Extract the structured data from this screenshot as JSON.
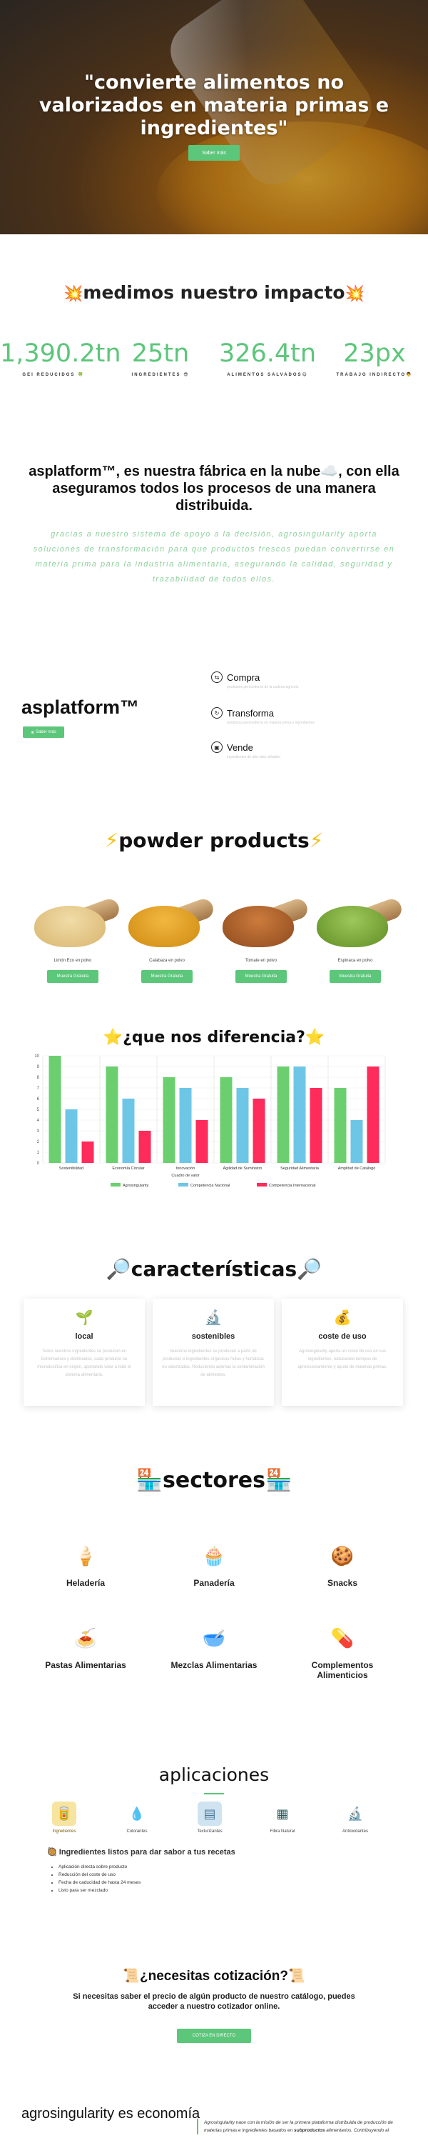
{
  "hero": {
    "title": "\"convierte alimentos no valorizados en materia primas e ingredientes\"",
    "button": "Saber más"
  },
  "impact": {
    "title": "medimos nuestro impacto",
    "stats": [
      {
        "value": "1,390.2tn",
        "label": "GEI REDUCIDOS 🍀"
      },
      {
        "value": "25tn",
        "label": "INGREDIENTES 😎"
      },
      {
        "value": "326.4tn",
        "label": "ALIMENTOS SALVADOS😋"
      },
      {
        "value": "23px",
        "label": "TRABAJO INDIRECTO👨"
      }
    ]
  },
  "intro": {
    "title": "asplatform™, es nuestra fábrica en la nube☁️, con ella aseguramos todos los procesos de una manera distribuida.",
    "text": "gracias a nuestro sistema de apoyo a la decisión, agrosingularity aporta soluciones de transformación para que productos frescos puedan convertirse en materia prima para la industria alimentaria, asegurando la calidad, seguridad y trazabilidad de todos ellos."
  },
  "asplatform": {
    "name": "asplatform™",
    "button": "Saber más",
    "features": [
      {
        "icon": "compra-icon",
        "name": "Compra",
        "desc": "productos perecederos de la cadena agrícola"
      },
      {
        "icon": "transforma-icon",
        "name": "Transforma",
        "desc": "productos perecederos en materia prima e ingredientes"
      },
      {
        "icon": "vende-icon",
        "name": "Vende",
        "desc": "ingredientes de alto valor añadido"
      }
    ]
  },
  "powder": {
    "title": "powder products",
    "products": [
      {
        "name": "Limón Eco en polvo",
        "button": "Muestra Gratuita",
        "color": "#e8c98a"
      },
      {
        "name": "Calabaza en polvo",
        "button": "Muestra Gratuita",
        "color": "#e3a320"
      },
      {
        "name": "Tomate en polvo",
        "button": "Muestra Gratuita",
        "color": "#b5652a"
      },
      {
        "name": "Espinaca en polvo",
        "button": "Muestra Gratuita",
        "color": "#7dab3a"
      }
    ]
  },
  "difference": {
    "title": "¿que nos diferencia?"
  },
  "chart_data": {
    "type": "bar",
    "categories": [
      "Sostenibilidad",
      "Economía Circular",
      "Innovación",
      "Agilidad de Suministro",
      "Seguridad Alimentaria",
      "Amplitud de Catálogo"
    ],
    "xlabel": "Cuadro de valor",
    "ylabel": "",
    "ylim": [
      0,
      10
    ],
    "yticks": [
      0,
      1,
      2,
      3,
      4,
      5,
      6,
      7,
      8,
      9,
      10
    ],
    "legend_position": "bottom",
    "series": [
      {
        "name": "Agrosingularity",
        "color": "#6ccf6f",
        "values": [
          10,
          9,
          8,
          8,
          9,
          7
        ]
      },
      {
        "name": "Competencia Nacional",
        "color": "#6ec6e6",
        "values": [
          5,
          6,
          7,
          7,
          9,
          4
        ]
      },
      {
        "name": "Competencia Internacional",
        "color": "#ff2b5a",
        "values": [
          2,
          3,
          4,
          6,
          7,
          9
        ]
      }
    ]
  },
  "caracteristicas": {
    "title": "características",
    "cards": [
      {
        "icon": "local-icon",
        "title": "local",
        "desc": "Todos nuestros ingredientes se producen en Extremadura y distribuidos, cada producto se microdosifica en origen, aportando valor a todo el sistema alimentario."
      },
      {
        "icon": "sostenibles-icon",
        "title": "sostenibles",
        "desc": "Nuestros ingredientes se producen a partir de productos e ingredientes orgánicos frutas y hortalizas no valorizadas. Reduciendo además la contaminación de alimentos."
      },
      {
        "icon": "coste-icon",
        "title": "coste de uso",
        "desc": "Agrosingularity aporta un coste de uso en sus ingredientes, reduciendo tiempos de aprovisionamiento y ajuste de materias primas."
      }
    ]
  },
  "sectores": {
    "title": "sectores",
    "items": [
      {
        "icon": "ice-cream-icon",
        "name": "Heladería",
        "glyph": "🍦"
      },
      {
        "icon": "muffin-icon",
        "name": "Panadería",
        "glyph": "🧁"
      },
      {
        "icon": "macaron-icon",
        "name": "Snacks",
        "glyph": "🍪"
      },
      {
        "icon": "pasta-icon",
        "name": "Pastas Alimentarias",
        "glyph": "🍝"
      },
      {
        "icon": "flour-bag-icon",
        "name": "Mezclas Alimentarias",
        "glyph": "🥣"
      },
      {
        "icon": "supplements-icon",
        "name": "Complementos Alimenticios",
        "glyph": "💊"
      }
    ]
  },
  "aplicaciones": {
    "title": "aplicaciones",
    "items": [
      {
        "icon": "ingredientes-icon",
        "name": "Ingredientes",
        "glyph": "🥫"
      },
      {
        "icon": "colorantes-icon",
        "name": "Colorantes",
        "glyph": "💧"
      },
      {
        "icon": "texturizantes-icon",
        "name": "Texturizantes",
        "glyph": "▤"
      },
      {
        "icon": "fibra-natural-icon",
        "name": "Fibra Natural",
        "glyph": "▦"
      },
      {
        "icon": "antioxidantes-icon",
        "name": "Antioxidantes",
        "glyph": "🔬"
      }
    ],
    "ing_title": "Ingredientes listos para dar sabor a tus recetas",
    "bullets": [
      "Aplicación directa sobre producto",
      "Reducción del coste de uso",
      "Fecha de caducidad de hasta 24 meses",
      "Listo para ser mezclado"
    ]
  },
  "cotizacion": {
    "title": "¿necesitas cotización?",
    "subtitle": "Si necesitas saber el precio de algún producto de nuestro catálogo, puedes acceder a nuestro cotizador online.",
    "button": "COTIZA EN DIRECTO"
  },
  "footer": {
    "title": "agrosingularity es economía",
    "text_before": "Agrosingularity nace con la misión de ser la primera plataforma distribuida de producción de materias primas e ingredientes basados en ",
    "text_bold": "subproductos",
    "text_after": " alimentarios. Contribuyendo al"
  }
}
